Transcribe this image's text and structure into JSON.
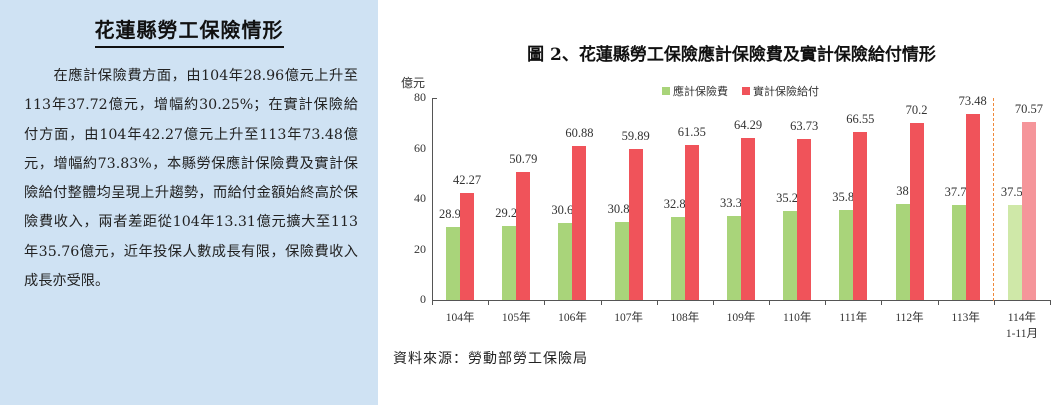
{
  "left_panel": {
    "title": "花蓮縣勞工保險情形",
    "paragraph": "　　在應計保險費方面，由104年28.96億元上升至113年37.72億元，增幅約30.25%；在實計保險給付方面，由104年42.27億元上升至113年73.48億元，增幅約73.83%，本縣勞保應計保險費及實計保險給付整體均呈現上升趨勢，而給付金額始終高於保險費收入，兩者差距從104年13.31億元擴大至113年35.76億元，近年投保人數成長有限，保險費收入成長亦受限。",
    "background": "#cfe2f3"
  },
  "chart": {
    "title": "圖 2、花蓮縣勞工保險應計保險費及實計保險給付情形",
    "source": "資料來源：勞動部勞工保險局"
  },
  "chart_data": {
    "type": "bar",
    "title": "圖 2、花蓮縣勞工保險應計保險費及實計保險給付情形",
    "xlabel": "",
    "ylabel": "億元",
    "ylim": [
      0,
      80
    ],
    "yticks": [
      0,
      20,
      40,
      60,
      80
    ],
    "grid": false,
    "legend_position": "top",
    "categories": [
      "104年",
      "105年",
      "106年",
      "107年",
      "108年",
      "109年",
      "110年",
      "111年",
      "112年",
      "113年",
      "114年\n1-11月"
    ],
    "series": [
      {
        "name": "應計保險費",
        "color": "#a9d47a",
        "partial_color": "#cfe8a8",
        "values": [
          28.96,
          29.23,
          30.64,
          30.85,
          32.81,
          33.35,
          35.26,
          35.81,
          38,
          37.72,
          37.57
        ],
        "labels": [
          "28.96",
          "29.23",
          "30.64",
          "30.85",
          "32.81",
          "33.35",
          "35.26",
          "35.81",
          "38",
          "37.72",
          "37.57"
        ]
      },
      {
        "name": "實計保險給付",
        "color": "#f0535a",
        "partial_color": "#f5959a",
        "values": [
          42.27,
          50.79,
          60.88,
          59.89,
          61.35,
          64.29,
          63.73,
          66.55,
          70.2,
          73.48,
          70.57
        ],
        "labels": [
          "42.27",
          "50.79",
          "60.88",
          "59.89",
          "61.35",
          "64.29",
          "63.73",
          "66.55",
          "70.2",
          "73.48",
          "70.57"
        ]
      }
    ],
    "annotations": [
      "dashed orange divider between 113年 and 114年 (partial year 1-11月)"
    ],
    "source": "資料來源：勞動部勞工保險局"
  }
}
